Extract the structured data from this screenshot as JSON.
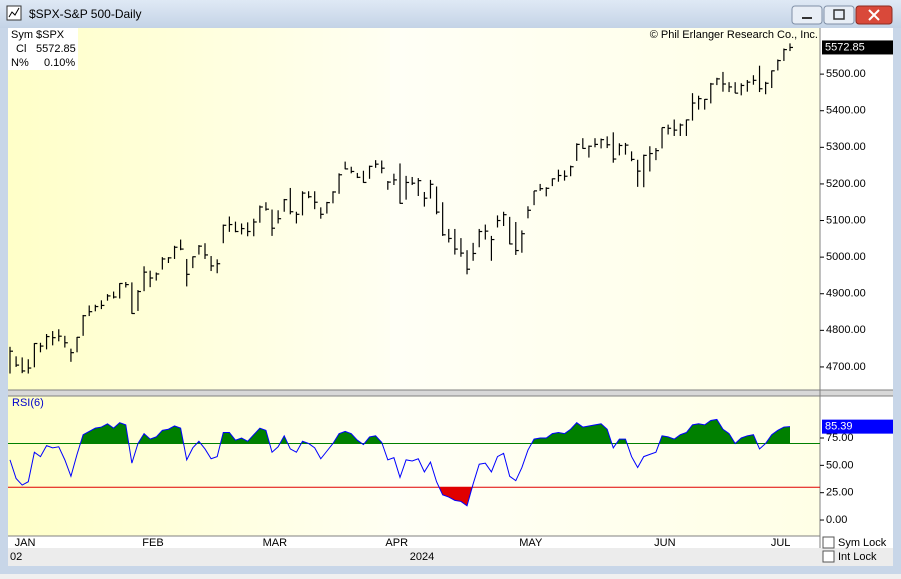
{
  "window": {
    "title": "$SPX-S&P 500-Daily"
  },
  "info": {
    "sym_label": "Sym",
    "sym": "$SPX",
    "close_label": "Cl",
    "change_label": "N%",
    "change": {
      "value": 0.1,
      "label": "0.10%"
    }
  },
  "x_axis": {
    "start_label": "02",
    "year_label": "2024"
  },
  "controls": {
    "sym_lock": "Sym Lock",
    "int_lock": "Int Lock"
  },
  "chart_data": [
    {
      "type": "hlc",
      "source": "© Phil Erlanger Research Co., Inc.",
      "color": "#000000",
      "categories": [
        "JAN",
        null,
        null,
        null,
        null,
        null,
        null,
        null,
        null,
        null,
        null,
        null,
        null,
        null,
        null,
        null,
        null,
        null,
        null,
        null,
        null,
        "FEB",
        null,
        null,
        null,
        null,
        null,
        null,
        null,
        null,
        null,
        null,
        null,
        null,
        null,
        null,
        null,
        null,
        null,
        null,
        null,
        "MAR",
        null,
        null,
        null,
        null,
        null,
        null,
        null,
        null,
        null,
        null,
        null,
        null,
        null,
        null,
        null,
        null,
        null,
        null,
        null,
        "APR",
        null,
        null,
        null,
        null,
        null,
        null,
        null,
        null,
        null,
        null,
        null,
        null,
        null,
        null,
        null,
        null,
        null,
        null,
        null,
        null,
        null,
        "MAY",
        null,
        null,
        null,
        null,
        null,
        null,
        null,
        null,
        null,
        null,
        null,
        null,
        null,
        null,
        null,
        null,
        null,
        null,
        null,
        null,
        null,
        "JUN",
        null,
        null,
        null,
        null,
        null,
        null,
        null,
        null,
        null,
        null,
        null,
        null,
        null,
        null,
        null,
        null,
        null,
        null,
        "JUL",
        null,
        null,
        null,
        null
      ],
      "high": [
        4755,
        4729,
        4726,
        4721,
        4765,
        4766,
        4790,
        4798,
        4803,
        4785,
        4750,
        4782,
        4842,
        4868,
        4870,
        4882,
        4899,
        4906,
        4929,
        4932,
        4931,
        4910,
        4975,
        4963,
        4958,
        5000,
        5000,
        5031,
        5048,
        4995,
        5002,
        5033,
        5038,
        5003,
        4994,
        5089,
        5111,
        5097,
        5092,
        5095,
        5105,
        5141,
        5150,
        5130,
        5128,
        5159,
        5189,
        5124,
        5180,
        5180,
        5180,
        5136,
        5151,
        5180,
        5229,
        5261,
        5247,
        5230,
        5236,
        5250,
        5265,
        5264,
        5208,
        5228,
        5256,
        5222,
        5219,
        5216,
        5178,
        5211,
        5193,
        5150,
        5077,
        5077,
        5052,
        5019,
        5039,
        5077,
        5089,
        5058,
        5114,
        5124,
        5110,
        5096,
        5073,
        5139,
        5181,
        5200,
        5191,
        5215,
        5239,
        5237,
        5250,
        5311,
        5325,
        5305,
        5325,
        5324,
        5330,
        5341,
        5311,
        5312,
        5289,
        5266,
        5280,
        5303,
        5298,
        5354,
        5362,
        5376,
        5365,
        5376,
        5448,
        5441,
        5432,
        5476,
        5490,
        5506,
        5478,
        5478,
        5475,
        5484,
        5497,
        5523,
        5479,
        5510,
        5540,
        5570,
        5584
      ],
      "low": [
        4682,
        4700,
        4683,
        4682,
        4699,
        4740,
        4748,
        4759,
        4770,
        4753,
        4714,
        4740,
        4785,
        4839,
        4852,
        4858,
        4881,
        4887,
        4887,
        4917,
        4845,
        4853,
        4907,
        4918,
        4936,
        4966,
        4984,
        4995,
        5019,
        4920,
        4970,
        5007,
        4995,
        4962,
        4956,
        5038,
        5069,
        5068,
        5062,
        5057,
        5057,
        5094,
        5127,
        5058,
        5092,
        5124,
        5117,
        5092,
        5114,
        5161,
        5131,
        5105,
        5119,
        5147,
        5173,
        5240,
        5229,
        5216,
        5203,
        5214,
        5244,
        5229,
        5184,
        5197,
        5146,
        5157,
        5197,
        5167,
        5138,
        5160,
        5117,
        5058,
        5040,
        5007,
        5001,
        4953,
        4990,
        5027,
        5048,
        4990,
        5081,
        5085,
        5035,
        5006,
        5012,
        5106,
        5142,
        5181,
        5166,
        5194,
        5206,
        5209,
        5221,
        5263,
        5296,
        5272,
        5300,
        5297,
        5298,
        5258,
        5278,
        5280,
        5262,
        5192,
        5191,
        5234,
        5265,
        5297,
        5335,
        5331,
        5331,
        5331,
        5373,
        5403,
        5403,
        5420,
        5470,
        5452,
        5451,
        5448,
        5442,
        5452,
        5471,
        5451,
        5445,
        5462,
        5510,
        5536,
        5563
      ],
      "close": [
        4743,
        4705,
        4689,
        4697,
        4764,
        4757,
        4783,
        4780,
        4784,
        4766,
        4739,
        4781,
        4840,
        4851,
        4865,
        4868,
        4894,
        4891,
        4928,
        4925,
        4846,
        4906,
        4959,
        4943,
        4954,
        4995,
        4998,
        5027,
        5022,
        4953,
        5001,
        5030,
        5006,
        4976,
        4982,
        5087,
        5089,
        5070,
        5078,
        5070,
        5096,
        5137,
        5131,
        5079,
        5105,
        5157,
        5124,
        5117,
        5175,
        5165,
        5150,
        5117,
        5149,
        5178,
        5225,
        5241,
        5234,
        5218,
        5204,
        5248,
        5254,
        5243,
        5205,
        5211,
        5147,
        5204,
        5202,
        5209,
        5161,
        5199,
        5123,
        5061,
        5051,
        5022,
        5011,
        4967,
        5010,
        5070,
        5071,
        5048,
        5100,
        5116,
        5036,
        5018,
        5064,
        5128,
        5181,
        5187,
        5188,
        5214,
        5223,
        5221,
        5247,
        5308,
        5297,
        5303,
        5308,
        5321,
        5307,
        5268,
        5305,
        5306,
        5267,
        5235,
        5278,
        5283,
        5291,
        5354,
        5352,
        5347,
        5361,
        5375,
        5421,
        5433,
        5431,
        5473,
        5487,
        5473,
        5465,
        5448,
        5469,
        5478,
        5483,
        5460,
        5475,
        5509,
        5537,
        5567,
        5572.85
      ],
      "ylim": [
        4637,
        5626
      ],
      "yticks": [
        {
          "value": 4700,
          "label": "4700.00"
        },
        {
          "value": 4800,
          "label": "4800.00"
        },
        {
          "value": 4900,
          "label": "4900.00"
        },
        {
          "value": 5000,
          "label": "5000.00"
        },
        {
          "value": 5100,
          "label": "5100.00"
        },
        {
          "value": 5200,
          "label": "5200.00"
        },
        {
          "value": 5300,
          "label": "5300.00"
        },
        {
          "value": 5400,
          "label": "5400.00"
        },
        {
          "value": 5500,
          "label": "5500.00"
        }
      ]
    },
    {
      "type": "line",
      "title": "RSI(6)",
      "color": "#0000ff",
      "values": [
        55,
        38,
        32,
        35,
        62,
        58,
        68,
        66,
        67,
        55,
        40,
        60,
        78,
        81,
        84,
        85,
        88,
        84,
        89,
        87,
        52,
        70,
        79,
        74,
        76,
        82,
        83,
        86,
        84,
        55,
        66,
        72,
        65,
        56,
        58,
        80,
        80,
        73,
        75,
        72,
        78,
        84,
        82,
        62,
        67,
        77,
        65,
        62,
        72,
        70,
        66,
        56,
        63,
        70,
        79,
        81,
        79,
        73,
        69,
        76,
        77,
        71,
        55,
        57,
        39,
        55,
        54,
        56,
        44,
        53,
        35,
        23,
        21,
        18,
        17,
        13,
        33,
        51,
        52,
        44,
        58,
        61,
        40,
        36,
        48,
        64,
        74,
        75,
        75,
        79,
        80,
        79,
        83,
        89,
        85,
        86,
        87,
        88,
        83,
        66,
        74,
        74,
        58,
        48,
        58,
        60,
        62,
        77,
        76,
        74,
        78,
        80,
        87,
        88,
        87,
        91,
        92,
        83,
        79,
        70,
        75,
        77,
        78,
        65,
        70,
        78,
        82,
        85,
        85.39
      ],
      "upper_line": 70,
      "upper_color": "#008000",
      "lower_line": 30,
      "lower_color": "#e00000",
      "ylim": [
        -14.6,
        113.4
      ],
      "yticks": [
        {
          "value": 0,
          "label": "0.00"
        },
        {
          "value": 25,
          "label": "25.00"
        },
        {
          "value": 50,
          "label": "50.00"
        },
        {
          "value": 75,
          "label": "75.00"
        }
      ]
    }
  ]
}
